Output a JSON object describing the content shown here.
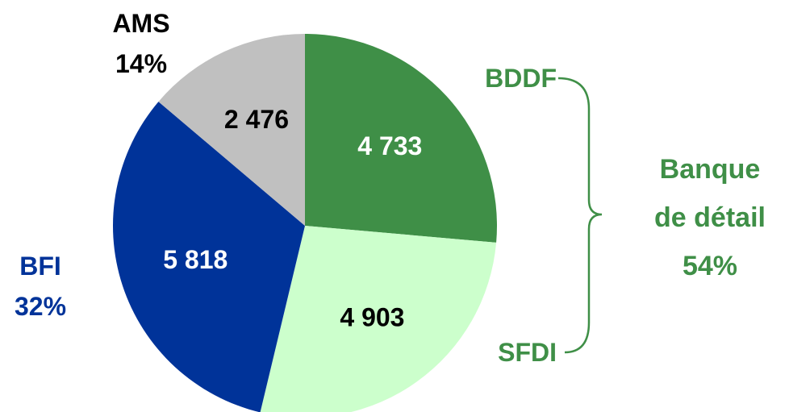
{
  "chart_data": {
    "type": "pie",
    "categories": [
      "BDDF",
      "SFDI",
      "BFI",
      "AMS"
    ],
    "values": [
      4733,
      4903,
      5818,
      2476
    ],
    "value_labels": [
      "4 733",
      "4 903",
      "5 818",
      "2 476"
    ],
    "colors": [
      "#3f8f47",
      "#ccffcc",
      "#003399",
      "#c0c0c0"
    ],
    "value_label_colors": [
      "#ffffff",
      "#000000",
      "#ffffff",
      "#000000"
    ],
    "category_label_colors": [
      "#3f8f47",
      "#3f8f47",
      "#003399",
      "#000000"
    ],
    "shares": [
      null,
      null,
      32,
      14
    ],
    "share_labels": [
      null,
      null,
      "32%",
      "14%"
    ],
    "group": {
      "name": "Banque de détail",
      "share": 54,
      "share_label": "54%",
      "color": "#3f8f47"
    }
  }
}
